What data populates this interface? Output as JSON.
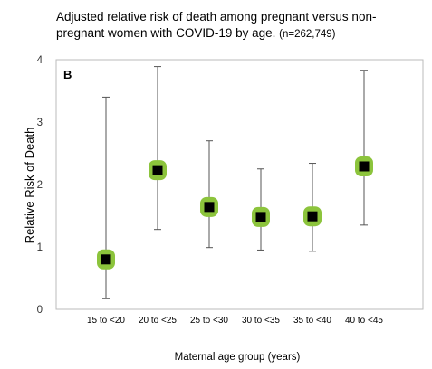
{
  "chart_data": {
    "type": "scatter",
    "title": "Adjusted relative risk of death among pregnant versus non-pregnant women with COVID-19 by age.",
    "subtitle": "(n=262,749)",
    "panel_label": "B",
    "xlabel": "Maternal age group (years)",
    "ylabel": "Relative Risk of Death",
    "categories": [
      "15 to <20",
      "20 to <25",
      "25 to <30",
      "30 to <35",
      "35 to <40",
      "40 to <45"
    ],
    "ylim": [
      0,
      4
    ],
    "yticks": [
      "0",
      "1",
      "2",
      "3",
      "4"
    ],
    "grid": false,
    "series": [
      {
        "values": [
          0.8,
          2.23,
          1.64,
          1.48,
          1.49,
          2.29
        ],
        "lower": [
          0.17,
          1.28,
          0.99,
          0.95,
          0.93,
          1.35
        ],
        "upper": [
          3.4,
          3.89,
          2.7,
          2.25,
          2.34,
          3.83
        ]
      }
    ],
    "colors": {
      "marker": "#000000",
      "highlight": "#8cc43c",
      "errorbar": "#555555",
      "frame": "#bbbbbb"
    }
  }
}
